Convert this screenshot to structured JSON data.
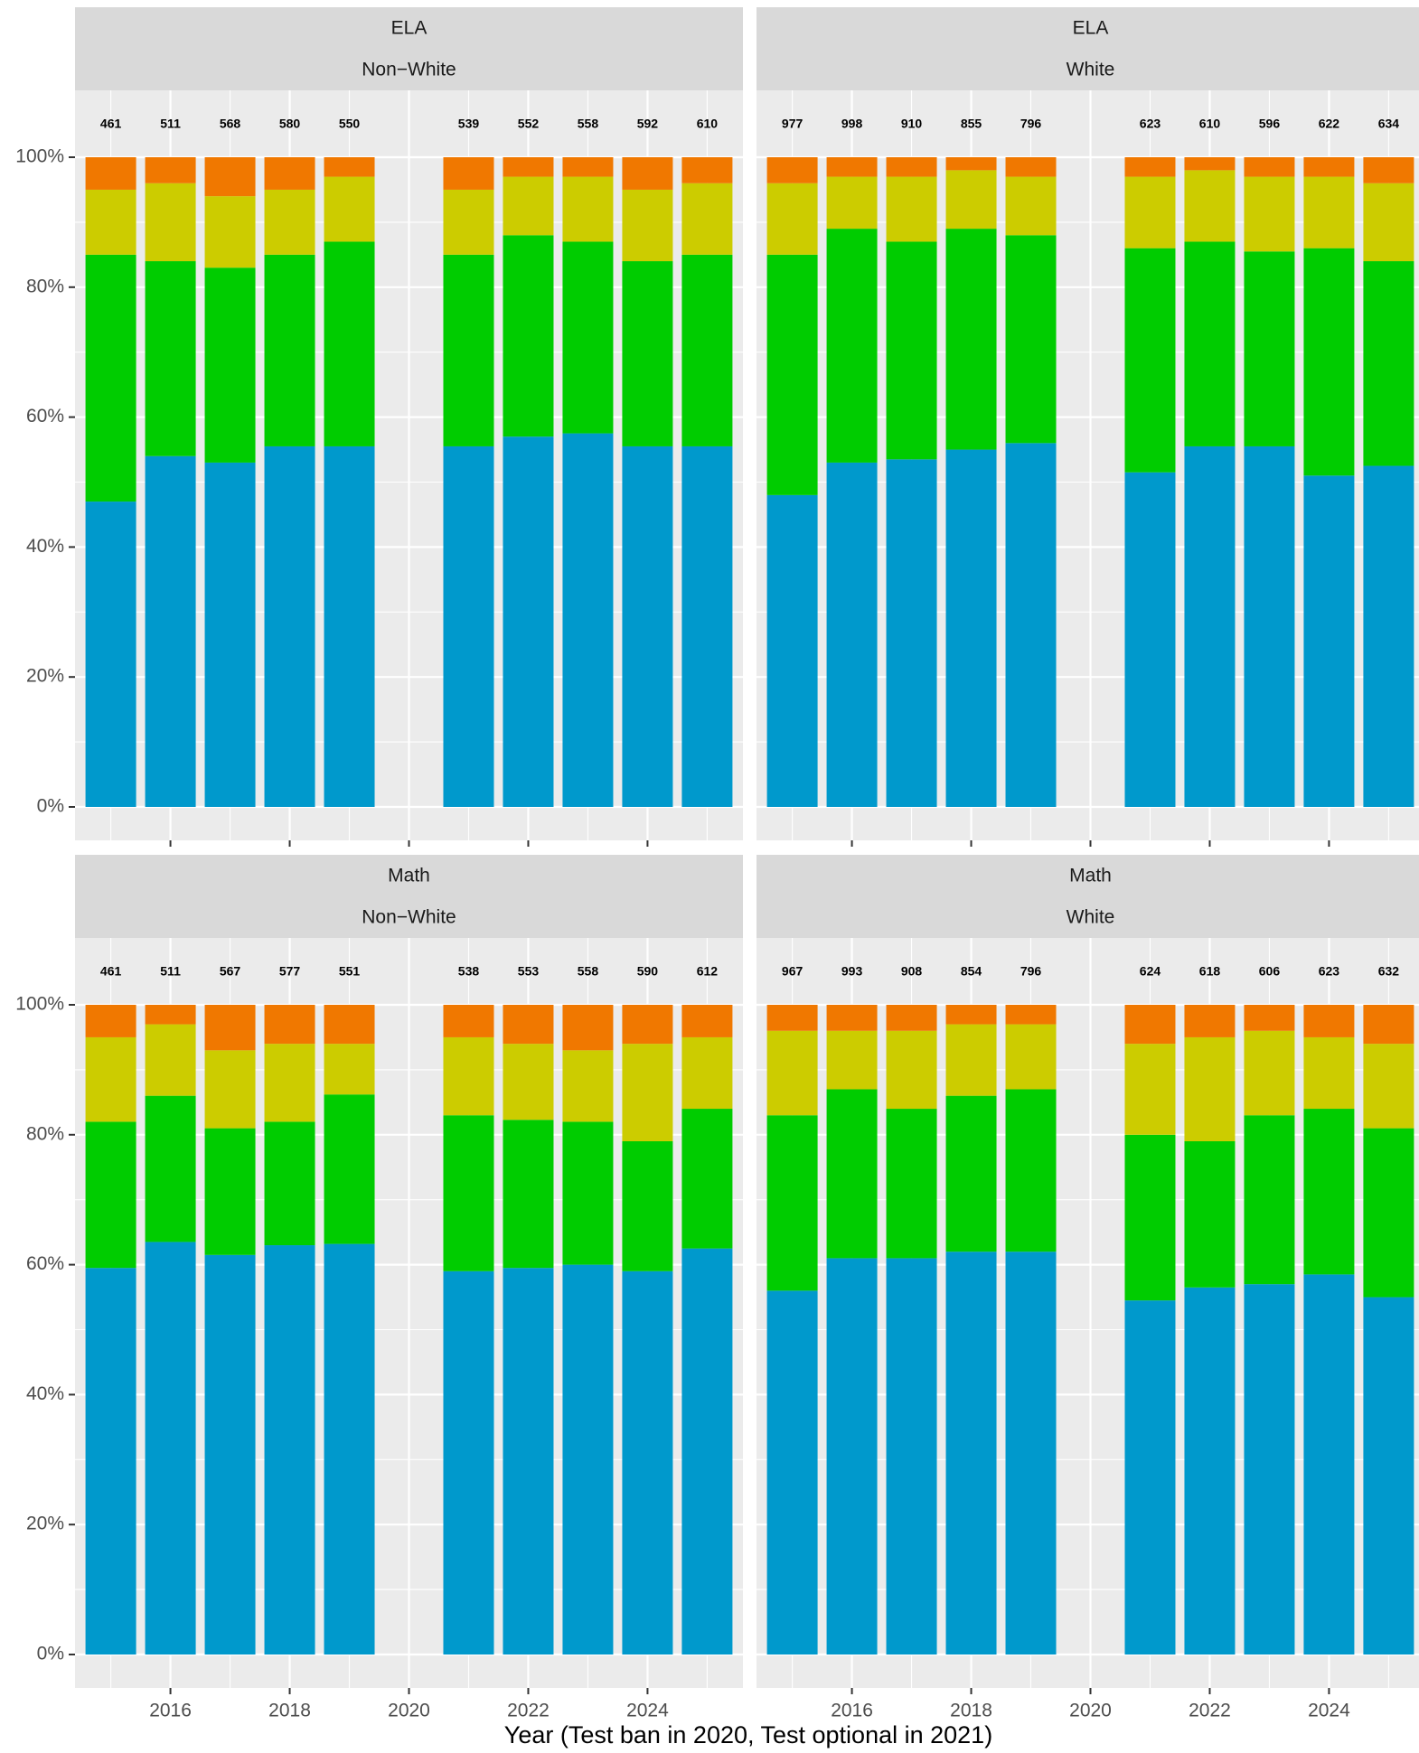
{
  "chart_data": {
    "type": "bar",
    "stacked": true,
    "xlabel": "Year (Test ban in 2020, Test optional in 2021)",
    "ylabel": "",
    "y_tick_labels": [
      "0%",
      "20%",
      "40%",
      "60%",
      "80%",
      "100%"
    ],
    "ylim": [
      0,
      1.05
    ],
    "x_tick_labels": [
      "2016",
      "2018",
      "2020",
      "2022",
      "2024"
    ],
    "x_tick_years": [
      2016,
      2018,
      2020,
      2022,
      2024
    ],
    "xlim": [
      2014.4,
      2025.6
    ],
    "grid": true,
    "legend": "none",
    "category_colors": [
      "#0099cc",
      "#00cc00",
      "#cccc00",
      "#f07800"
    ],
    "panels": [
      {
        "strip_top": "ELA",
        "strip_bottom": "Non−White",
        "years": [
          2015,
          2016,
          2017,
          2018,
          2019,
          2021,
          2022,
          2023,
          2024,
          2025
        ],
        "counts": [
          "461",
          "511",
          "568",
          "580",
          "550",
          "539",
          "552",
          "558",
          "592",
          "610"
        ],
        "cumulative": [
          [
            0.47,
            0.85,
            0.95
          ],
          [
            0.54,
            0.84,
            0.96
          ],
          [
            0.53,
            0.83,
            0.94
          ],
          [
            0.555,
            0.85,
            0.95
          ],
          [
            0.555,
            0.87,
            0.97
          ],
          [
            0.555,
            0.85,
            0.95
          ],
          [
            0.57,
            0.88,
            0.97
          ],
          [
            0.575,
            0.87,
            0.97
          ],
          [
            0.555,
            0.84,
            0.95
          ],
          [
            0.555,
            0.85,
            0.96
          ]
        ]
      },
      {
        "strip_top": "ELA",
        "strip_bottom": "White",
        "years": [
          2015,
          2016,
          2017,
          2018,
          2019,
          2021,
          2022,
          2023,
          2024,
          2025
        ],
        "counts": [
          "977",
          "998",
          "910",
          "855",
          "796",
          "623",
          "610",
          "596",
          "622",
          "634"
        ],
        "cumulative": [
          [
            0.48,
            0.85,
            0.96
          ],
          [
            0.53,
            0.89,
            0.97
          ],
          [
            0.535,
            0.87,
            0.97
          ],
          [
            0.55,
            0.89,
            0.98
          ],
          [
            0.56,
            0.88,
            0.97
          ],
          [
            0.515,
            0.86,
            0.97
          ],
          [
            0.555,
            0.87,
            0.98
          ],
          [
            0.555,
            0.855,
            0.97
          ],
          [
            0.51,
            0.86,
            0.97
          ],
          [
            0.525,
            0.84,
            0.96
          ]
        ]
      },
      {
        "strip_top": "Math",
        "strip_bottom": "Non−White",
        "years": [
          2015,
          2016,
          2017,
          2018,
          2019,
          2021,
          2022,
          2023,
          2024,
          2025
        ],
        "counts": [
          "461",
          "511",
          "567",
          "577",
          "551",
          "538",
          "553",
          "558",
          "590",
          "612"
        ],
        "cumulative": [
          [
            0.595,
            0.82,
            0.95
          ],
          [
            0.635,
            0.86,
            0.97
          ],
          [
            0.615,
            0.81,
            0.93
          ],
          [
            0.63,
            0.82,
            0.94
          ],
          [
            0.632,
            0.862,
            0.94
          ],
          [
            0.59,
            0.83,
            0.95
          ],
          [
            0.595,
            0.823,
            0.94
          ],
          [
            0.6,
            0.82,
            0.93
          ],
          [
            0.59,
            0.79,
            0.94
          ],
          [
            0.625,
            0.84,
            0.95
          ]
        ]
      },
      {
        "strip_top": "Math",
        "strip_bottom": "White",
        "years": [
          2015,
          2016,
          2017,
          2018,
          2019,
          2021,
          2022,
          2023,
          2024,
          2025
        ],
        "counts": [
          "967",
          "993",
          "908",
          "854",
          "796",
          "624",
          "618",
          "606",
          "623",
          "632"
        ],
        "cumulative": [
          [
            0.56,
            0.83,
            0.96
          ],
          [
            0.61,
            0.87,
            0.96
          ],
          [
            0.61,
            0.84,
            0.96
          ],
          [
            0.62,
            0.86,
            0.97
          ],
          [
            0.62,
            0.87,
            0.97
          ],
          [
            0.545,
            0.8,
            0.94
          ],
          [
            0.565,
            0.79,
            0.95
          ],
          [
            0.57,
            0.83,
            0.96
          ],
          [
            0.585,
            0.84,
            0.95
          ],
          [
            0.55,
            0.81,
            0.94
          ]
        ]
      }
    ]
  }
}
